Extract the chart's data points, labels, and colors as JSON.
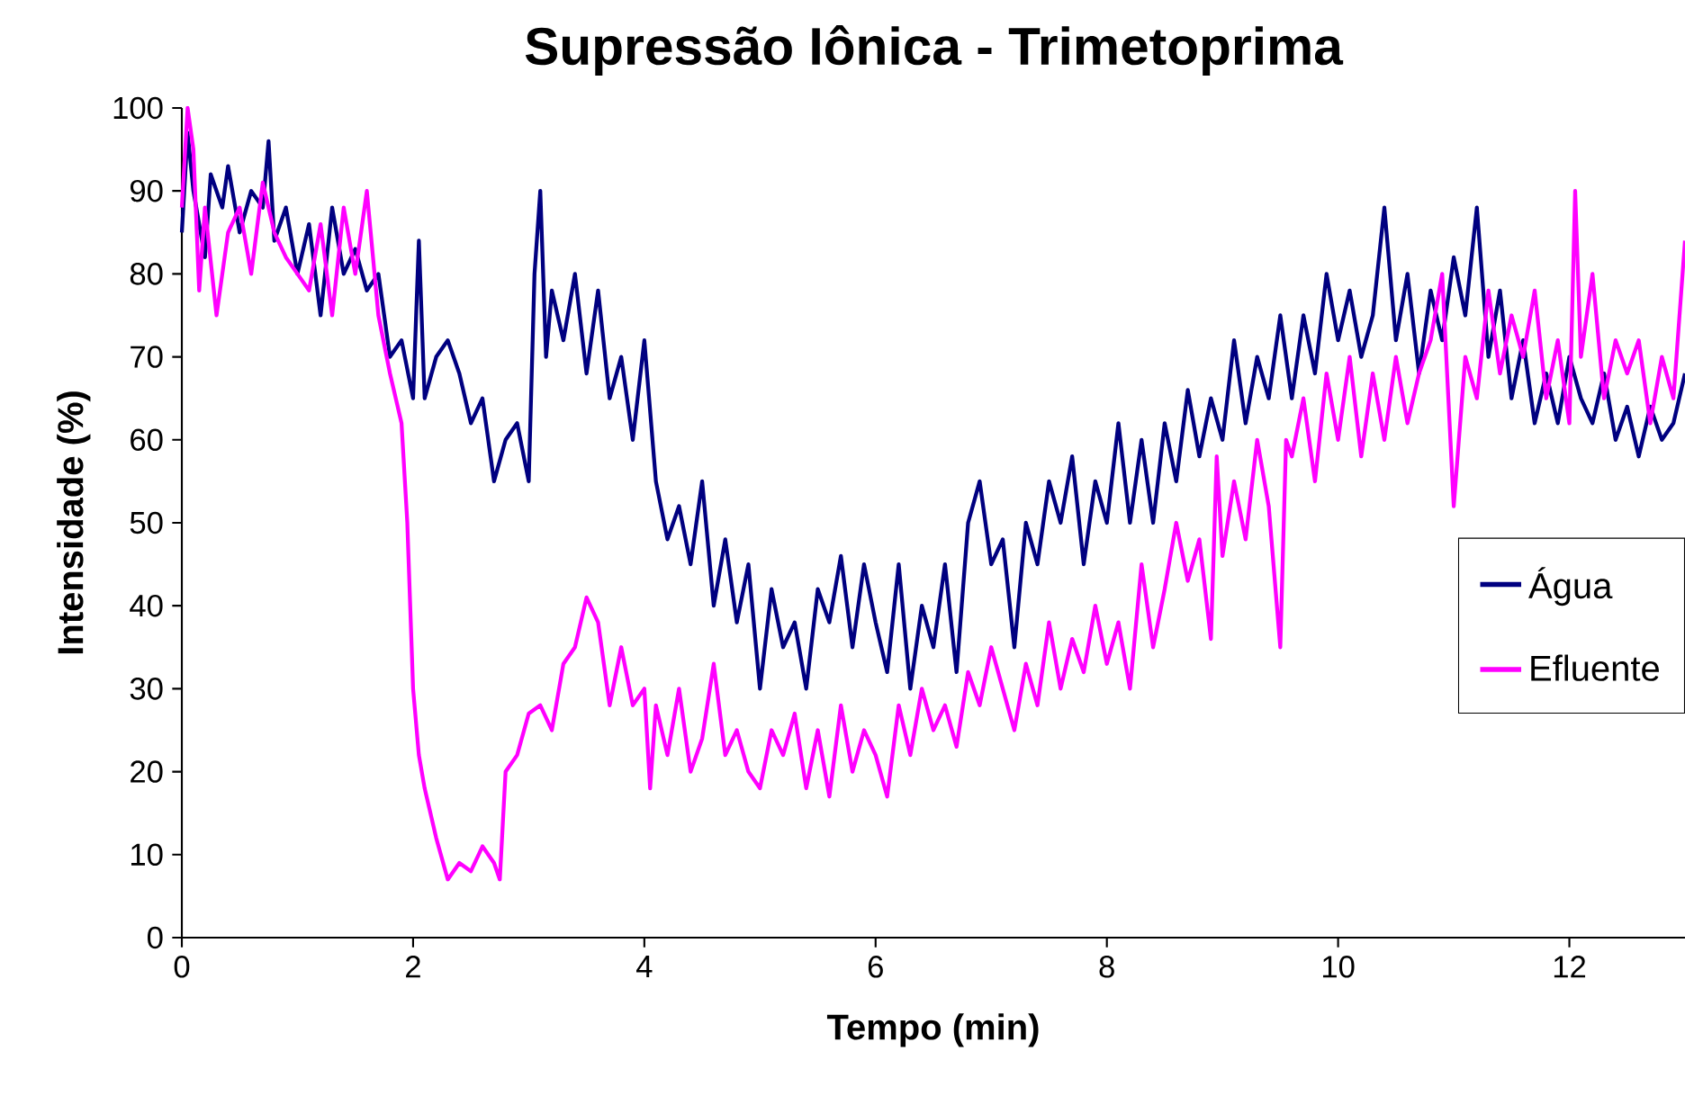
{
  "chart_data": {
    "type": "line",
    "title": "Supressão Iônica - Trimetoprima",
    "xlabel": "Tempo (min)",
    "ylabel": "Intensidade (%)",
    "xlim": [
      0,
      13
    ],
    "ylim": [
      0,
      100
    ],
    "xticks": [
      0,
      2,
      4,
      6,
      8,
      10,
      12
    ],
    "yticks": [
      0,
      10,
      20,
      30,
      40,
      50,
      60,
      70,
      80,
      90,
      100
    ],
    "grid": false,
    "legend": "right",
    "line_style": "solid",
    "marker": "none",
    "series": [
      {
        "name": "Água",
        "color": "#000080",
        "x": [
          0,
          0.05,
          0.1,
          0.2,
          0.25,
          0.35,
          0.4,
          0.5,
          0.6,
          0.7,
          0.75,
          0.8,
          0.9,
          1.0,
          1.1,
          1.2,
          1.3,
          1.4,
          1.5,
          1.6,
          1.7,
          1.8,
          1.9,
          2.0,
          2.05,
          2.1,
          2.2,
          2.3,
          2.4,
          2.5,
          2.6,
          2.7,
          2.8,
          2.9,
          3.0,
          3.05,
          3.1,
          3.15,
          3.2,
          3.3,
          3.4,
          3.5,
          3.6,
          3.7,
          3.8,
          3.9,
          4.0,
          4.1,
          4.2,
          4.3,
          4.4,
          4.5,
          4.6,
          4.7,
          4.8,
          4.9,
          5.0,
          5.1,
          5.2,
          5.3,
          5.4,
          5.5,
          5.6,
          5.7,
          5.8,
          5.9,
          6.0,
          6.1,
          6.2,
          6.3,
          6.4,
          6.5,
          6.6,
          6.7,
          6.8,
          6.9,
          7.0,
          7.1,
          7.2,
          7.3,
          7.4,
          7.5,
          7.6,
          7.7,
          7.8,
          7.9,
          8.0,
          8.1,
          8.2,
          8.3,
          8.4,
          8.5,
          8.6,
          8.7,
          8.8,
          8.9,
          9.0,
          9.1,
          9.2,
          9.3,
          9.4,
          9.5,
          9.6,
          9.7,
          9.8,
          9.9,
          10.0,
          10.1,
          10.2,
          10.3,
          10.4,
          10.5,
          10.6,
          10.7,
          10.8,
          10.9,
          11.0,
          11.1,
          11.2,
          11.3,
          11.4,
          11.5,
          11.6,
          11.7,
          11.8,
          11.9,
          12.0,
          12.1,
          12.2,
          12.3,
          12.4,
          12.5,
          12.6,
          12.7,
          12.8,
          12.9,
          13.0
        ],
        "values": [
          85,
          97,
          90,
          82,
          92,
          88,
          93,
          85,
          90,
          88,
          96,
          84,
          88,
          80,
          86,
          75,
          88,
          80,
          83,
          78,
          80,
          70,
          72,
          65,
          84,
          65,
          70,
          72,
          68,
          62,
          65,
          55,
          60,
          62,
          55,
          80,
          90,
          70,
          78,
          72,
          80,
          68,
          78,
          65,
          70,
          60,
          72,
          55,
          48,
          52,
          45,
          55,
          40,
          48,
          38,
          45,
          30,
          42,
          35,
          38,
          30,
          42,
          38,
          46,
          35,
          45,
          38,
          32,
          45,
          30,
          40,
          35,
          45,
          32,
          50,
          55,
          45,
          48,
          35,
          50,
          45,
          55,
          50,
          58,
          45,
          55,
          50,
          62,
          50,
          60,
          50,
          62,
          55,
          66,
          58,
          65,
          60,
          72,
          62,
          70,
          65,
          75,
          65,
          75,
          68,
          80,
          72,
          78,
          70,
          75,
          88,
          72,
          80,
          68,
          78,
          72,
          82,
          75,
          88,
          70,
          78,
          65,
          72,
          62,
          68,
          62,
          70,
          65,
          62,
          68,
          60,
          64,
          58,
          64,
          60,
          62,
          68
        ]
      },
      {
        "name": "Efluente",
        "color": "#ff00ff",
        "x": [
          0,
          0.05,
          0.1,
          0.15,
          0.2,
          0.3,
          0.4,
          0.5,
          0.6,
          0.7,
          0.8,
          0.9,
          1.0,
          1.1,
          1.2,
          1.3,
          1.4,
          1.5,
          1.6,
          1.7,
          1.8,
          1.9,
          1.95,
          2.0,
          2.05,
          2.1,
          2.2,
          2.3,
          2.4,
          2.5,
          2.6,
          2.7,
          2.75,
          2.8,
          2.9,
          3.0,
          3.1,
          3.2,
          3.3,
          3.4,
          3.5,
          3.6,
          3.7,
          3.8,
          3.9,
          4.0,
          4.05,
          4.1,
          4.2,
          4.3,
          4.4,
          4.5,
          4.6,
          4.7,
          4.8,
          4.9,
          5.0,
          5.1,
          5.2,
          5.3,
          5.4,
          5.5,
          5.6,
          5.7,
          5.8,
          5.9,
          6.0,
          6.1,
          6.2,
          6.3,
          6.4,
          6.5,
          6.6,
          6.7,
          6.8,
          6.9,
          7.0,
          7.1,
          7.2,
          7.3,
          7.4,
          7.5,
          7.6,
          7.7,
          7.8,
          7.9,
          8.0,
          8.1,
          8.2,
          8.3,
          8.4,
          8.5,
          8.6,
          8.7,
          8.8,
          8.9,
          8.95,
          9.0,
          9.1,
          9.2,
          9.3,
          9.4,
          9.5,
          9.55,
          9.6,
          9.7,
          9.8,
          9.9,
          10.0,
          10.1,
          10.2,
          10.3,
          10.4,
          10.5,
          10.6,
          10.7,
          10.8,
          10.9,
          11.0,
          11.1,
          11.2,
          11.3,
          11.4,
          11.5,
          11.6,
          11.7,
          11.8,
          11.9,
          12.0,
          12.05,
          12.1,
          12.2,
          12.3,
          12.4,
          12.5,
          12.6,
          12.7,
          12.8,
          12.9,
          13.0
        ],
        "values": [
          88,
          100,
          95,
          78,
          88,
          75,
          85,
          88,
          80,
          91,
          85,
          82,
          80,
          78,
          86,
          75,
          88,
          80,
          90,
          75,
          68,
          62,
          50,
          30,
          22,
          18,
          12,
          7,
          9,
          8,
          11,
          9,
          7,
          20,
          22,
          27,
          28,
          25,
          33,
          35,
          41,
          38,
          28,
          35,
          28,
          30,
          18,
          28,
          22,
          30,
          20,
          24,
          33,
          22,
          25,
          20,
          18,
          25,
          22,
          27,
          18,
          25,
          17,
          28,
          20,
          25,
          22,
          17,
          28,
          22,
          30,
          25,
          28,
          23,
          32,
          28,
          35,
          30,
          25,
          33,
          28,
          38,
          30,
          36,
          32,
          40,
          33,
          38,
          30,
          45,
          35,
          42,
          50,
          43,
          48,
          36,
          58,
          46,
          55,
          48,
          60,
          52,
          35,
          60,
          58,
          65,
          55,
          68,
          60,
          70,
          58,
          68,
          60,
          70,
          62,
          68,
          72,
          80,
          52,
          70,
          65,
          78,
          68,
          75,
          70,
          78,
          65,
          72,
          62,
          90,
          70,
          80,
          65,
          72,
          68,
          72,
          62,
          70,
          65,
          84
        ]
      }
    ]
  }
}
